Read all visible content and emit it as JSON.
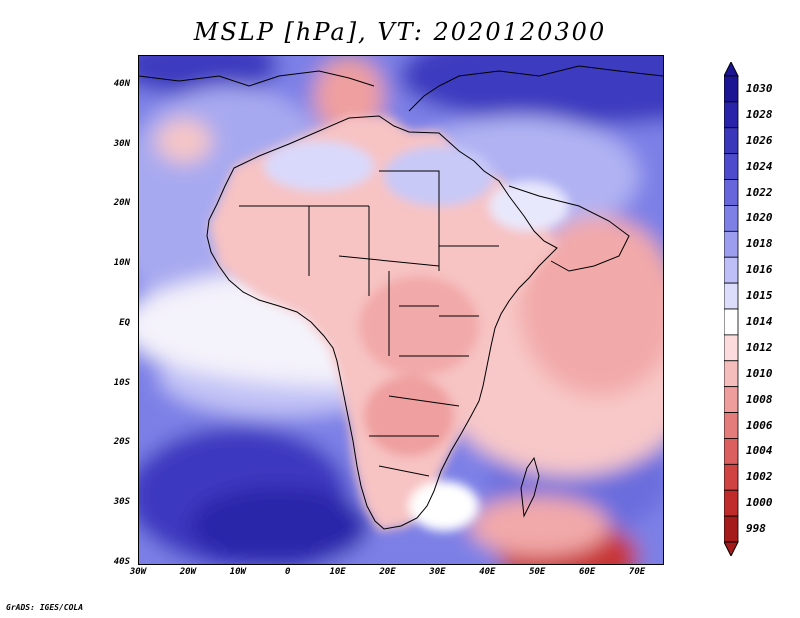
{
  "title": "MSLP [hPa], VT: 2020120300",
  "footer": "GrADS: IGES/COLA",
  "axes": {
    "lat_labels": [
      "40N",
      "30N",
      "20N",
      "10N",
      "EQ",
      "10S",
      "20S",
      "30S",
      "40S"
    ],
    "lat_values": [
      40,
      30,
      20,
      10,
      0,
      -10,
      -20,
      -30,
      -40
    ],
    "lon_labels": [
      "30W",
      "20W",
      "10W",
      "0",
      "10E",
      "20E",
      "30E",
      "40E",
      "50E",
      "60E",
      "70E"
    ],
    "lon_values": [
      -30,
      -20,
      -10,
      0,
      10,
      20,
      30,
      40,
      50,
      60,
      70
    ],
    "lon_range": [
      -30,
      75
    ],
    "lat_range": [
      -40,
      45
    ]
  },
  "colorbar": {
    "levels": [
      "1030",
      "1028",
      "1026",
      "1024",
      "1022",
      "1020",
      "1018",
      "1016",
      "1015",
      "1014",
      "1012",
      "1010",
      "1008",
      "1006",
      "1004",
      "1002",
      "1000",
      "998"
    ],
    "colors": [
      "#1b1493",
      "#2823a8",
      "#3a37bb",
      "#4e4ccc",
      "#6767db",
      "#7f80e6",
      "#9c9def",
      "#bfbff7",
      "#dcdcfb",
      "#ffffff",
      "#fcdcdc",
      "#f6bdbd",
      "#ee9c9c",
      "#e57c7c",
      "#db5f5f",
      "#cf4343",
      "#c02c2c",
      "#a51b1b"
    ]
  },
  "map_colors": {
    "deep_high": "#2a26aa",
    "high": "#5e5ed6",
    "mid_high": "#8d8fe9",
    "light_high": "#c2c3f6",
    "neutral": "#f4f2fa",
    "light_low": "#fbd0d0",
    "low": "#f2a9a9",
    "deep_low": "#c73535",
    "land": "#f7c3c3",
    "coast": "#000000"
  }
}
